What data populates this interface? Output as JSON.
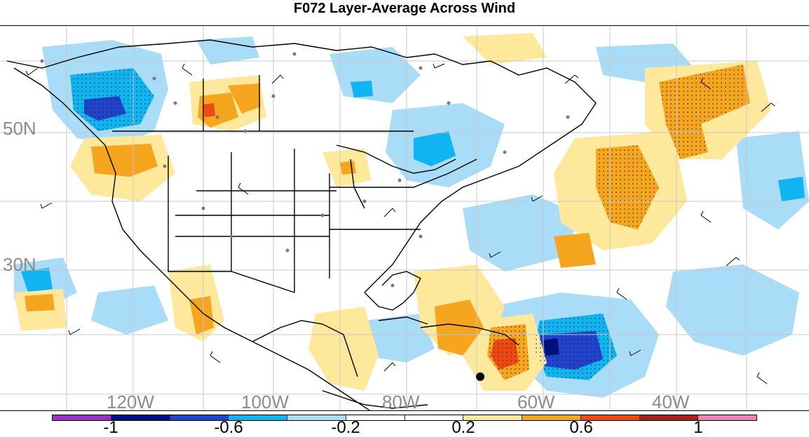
{
  "title": "F072 Layer-Average Across Wind",
  "map": {
    "lat_labels": [
      "50N",
      "30N"
    ],
    "lon_labels": [
      "120W",
      "100W",
      "80W",
      "60W",
      "40W"
    ]
  },
  "colorbar": {
    "colors": [
      "#9b30c8",
      "#000f80",
      "#1f43cc",
      "#0fb4f0",
      "#a9dcf7",
      "#ffffff",
      "#ffffff",
      "#fde89c",
      "#f5a51e",
      "#ee4a10",
      "#a8201c",
      "#ee82b4"
    ],
    "labels": [
      "-1",
      "-0.6",
      "-0.2",
      "0.2",
      "0.6",
      "1"
    ]
  }
}
